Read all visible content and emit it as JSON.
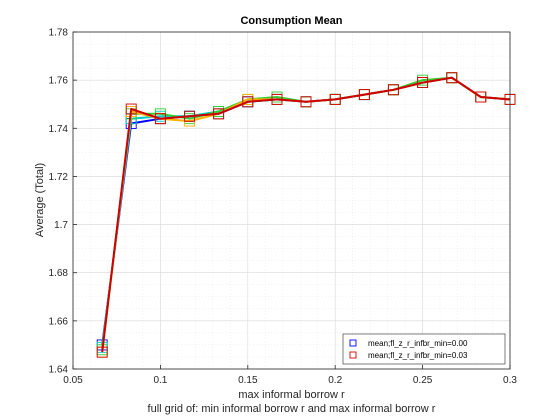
{
  "chart_data": {
    "type": "line",
    "title": "Consumption Mean",
    "xlabel": "max informal borrow r",
    "ylabel": "Average (Total)",
    "footnote": "full grid of: min informal borrow r and max informal borrow r",
    "xlim": [
      0.05,
      0.3
    ],
    "ylim": [
      1.64,
      1.78
    ],
    "xticks": [
      0.05,
      0.1,
      0.15,
      0.2,
      0.25,
      0.3
    ],
    "xtick_labels": [
      "0.05",
      "0.1",
      "0.15",
      "0.2",
      "0.25",
      "0.3"
    ],
    "yticks": [
      1.64,
      1.66,
      1.68,
      1.7,
      1.72,
      1.74,
      1.76,
      1.78
    ],
    "ytick_labels": [
      "1.64",
      "1.66",
      "1.68",
      "1.7",
      "1.72",
      "1.74",
      "1.76",
      "1.78"
    ],
    "grid": true,
    "legend_position": "bottom-right",
    "x": [
      0.0667,
      0.0833,
      0.1,
      0.1167,
      0.1333,
      0.15,
      0.1667,
      0.1833,
      0.2,
      0.2167,
      0.2333,
      0.25,
      0.2667,
      0.2833,
      0.3
    ],
    "series": [
      {
        "name": "mean;fl_z_r_infbr_min=0.00",
        "color": "#0000ff",
        "marker": "square",
        "legend": true,
        "values": [
          1.65,
          1.742,
          1.744,
          1.745,
          1.746,
          1.751,
          1.752,
          1.751,
          1.752,
          1.754,
          1.756,
          1.759,
          1.761,
          1.753,
          1.752
        ]
      },
      {
        "name": "",
        "color": "#00cccc",
        "marker": "square",
        "legend": false,
        "values": [
          1.649,
          1.744,
          1.745,
          1.745,
          1.747,
          1.751,
          1.752,
          1.751,
          1.752,
          1.754,
          1.756,
          1.759,
          1.761,
          1.753,
          1.752
        ]
      },
      {
        "name": "",
        "color": "#33cc33",
        "marker": "square",
        "legend": false,
        "values": [
          1.648,
          1.746,
          1.746,
          1.744,
          1.747,
          1.752,
          1.753,
          1.751,
          1.752,
          1.754,
          1.756,
          1.76,
          1.761,
          1.753,
          1.752
        ]
      },
      {
        "name": "",
        "color": "#ffb000",
        "marker": "square",
        "legend": false,
        "values": [
          1.647,
          1.747,
          1.744,
          1.743,
          1.746,
          1.752,
          1.752,
          1.751,
          1.752,
          1.754,
          1.756,
          1.759,
          1.761,
          1.753,
          1.752
        ]
      },
      {
        "name": "mean;fl_z_r_infbr_min=0.03",
        "color": "#cc0000",
        "marker": "square",
        "legend": true,
        "values": [
          1.647,
          1.748,
          1.744,
          1.745,
          1.746,
          1.751,
          1.752,
          1.751,
          1.752,
          1.754,
          1.756,
          1.759,
          1.761,
          1.753,
          1.752
        ]
      }
    ]
  }
}
